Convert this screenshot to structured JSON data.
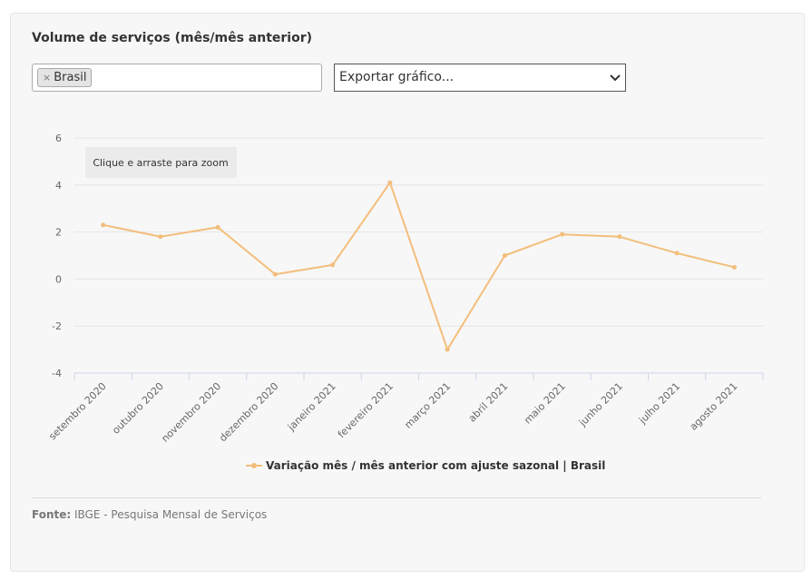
{
  "header": {
    "title": "Volume de serviços (mês/mês anterior)"
  },
  "filter": {
    "tag_remove": "×",
    "tag_label": "Brasil"
  },
  "export_select": {
    "selected": "Exportar gráfico..."
  },
  "zoom_hint": "Clique e arraste para zoom",
  "footer": {
    "source_label": "Fonte:",
    "source_text": "IBGE - Pesquisa Mensal de Serviços"
  },
  "colors": {
    "series": "#f3be7b",
    "grid": "#e6e6e6"
  },
  "chart_data": {
    "type": "line",
    "title": "Volume de serviços (mês/mês anterior)",
    "categories": [
      "setembro 2020",
      "outubro 2020",
      "novembro 2020",
      "dezembro 2020",
      "janeiro 2021",
      "fevereiro 2021",
      "março 2021",
      "abril 2021",
      "maio 2021",
      "junho 2021",
      "julho 2021",
      "agosto 2021"
    ],
    "series": [
      {
        "name": "Variação mês / mês anterior com ajuste sazonal | Brasil",
        "values": [
          2.3,
          1.8,
          2.2,
          0.2,
          0.6,
          4.1,
          -3.0,
          1.0,
          1.9,
          1.8,
          1.1,
          0.5
        ]
      }
    ],
    "yticks": [
      "6",
      "4",
      "2",
      "0",
      "-2",
      "-4"
    ],
    "ylim": [
      -4,
      6
    ],
    "grid": true,
    "legend": "bottom"
  }
}
